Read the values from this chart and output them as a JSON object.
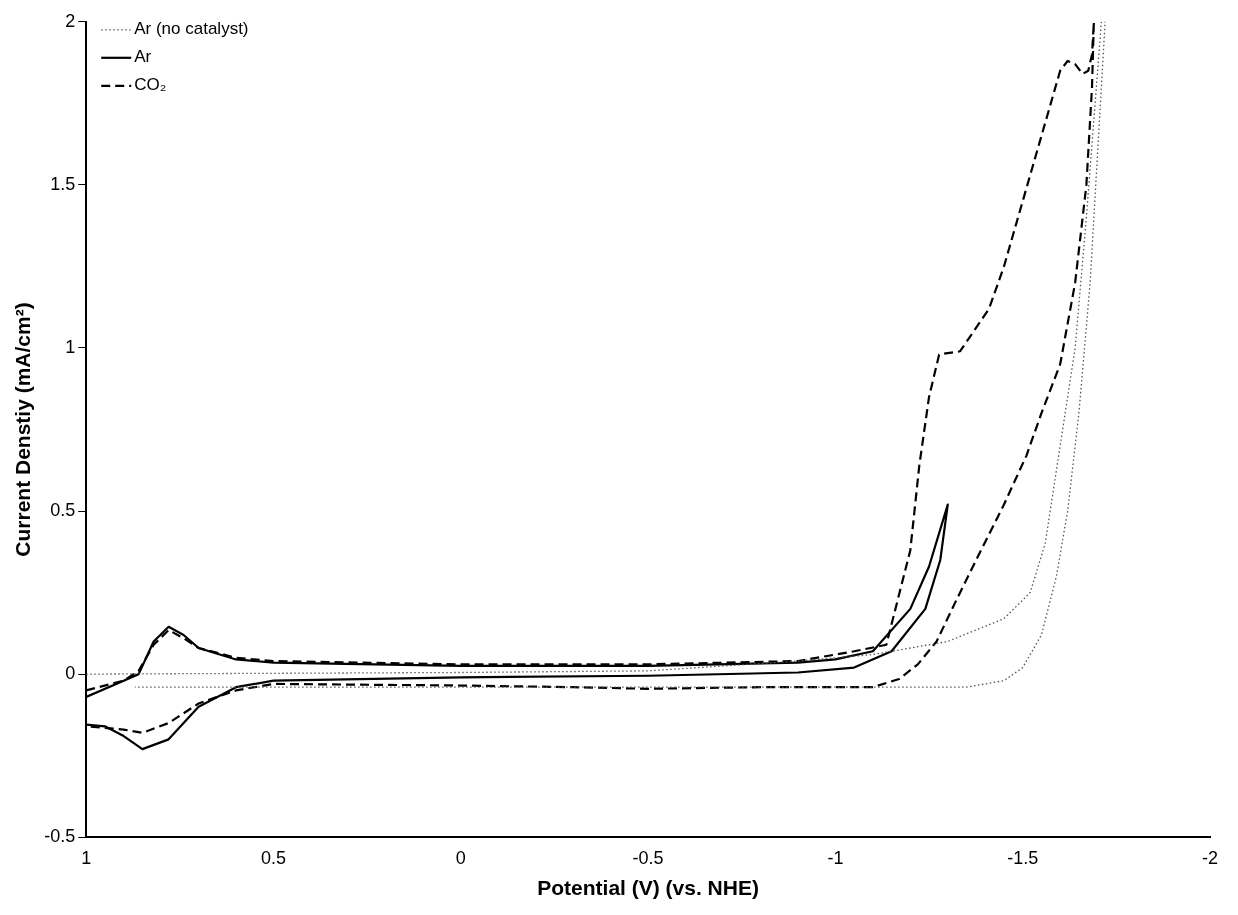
{
  "chart_data": {
    "type": "line",
    "xlabel": "Potential (V) (vs. NHE)",
    "ylabel": "Current Denstiy (mA/cm²)",
    "xlim": [
      1,
      -2
    ],
    "xticks": [
      1,
      0.5,
      0,
      -0.5,
      -1,
      -1.5,
      -2
    ],
    "ylim": [
      -0.5,
      2
    ],
    "yticks": [
      -0.5,
      0,
      0.5,
      1,
      1.5,
      2
    ],
    "grid": false,
    "legend": "top left",
    "marker": "none",
    "series": [
      {
        "name": "Ar (no catalyst)",
        "color": "#555555",
        "line_style": "dotted",
        "x": [
          1,
          0,
          -0.5,
          -0.9,
          -1.1,
          -1.3,
          -1.45,
          -1.52,
          -1.56,
          -1.6,
          -1.64,
          -1.67,
          -1.69,
          -1.71,
          -1.72,
          -1.7,
          -1.68,
          -1.65,
          -1.62,
          -1.59,
          -1.55,
          -1.5,
          -1.45,
          -1.35,
          -1,
          0,
          0.5,
          0.87
        ],
        "values": [
          0,
          0.005,
          0.01,
          0.04,
          0.06,
          0.1,
          0.17,
          0.25,
          0.4,
          0.7,
          1,
          1.4,
          1.7,
          2,
          2,
          1.6,
          1.2,
          0.8,
          0.5,
          0.3,
          0.12,
          0.02,
          -0.02,
          -0.04,
          -0.04,
          -0.04,
          -0.04,
          -0.04
        ]
      },
      {
        "name": "Ar",
        "color": "#000000",
        "line_style": "solid",
        "x": [
          1,
          0.9,
          0.86,
          0.82,
          0.78,
          0.74,
          0.7,
          0.6,
          0.5,
          0,
          -0.5,
          -0.9,
          -1,
          -1.1,
          -1.2,
          -1.25,
          -1.3,
          -1.28,
          -1.24,
          -1.15,
          -1.05,
          -0.9,
          -0.5,
          0,
          0.5,
          0.6,
          0.7,
          0.78,
          0.85,
          0.9,
          0.95,
          1
        ],
        "values": [
          -0.07,
          -0.02,
          0,
          0.1,
          0.145,
          0.12,
          0.08,
          0.045,
          0.035,
          0.025,
          0.025,
          0.035,
          0.045,
          0.07,
          0.2,
          0.33,
          0.52,
          0.35,
          0.2,
          0.07,
          0.02,
          0.005,
          -0.005,
          -0.01,
          -0.02,
          -0.04,
          -0.1,
          -0.2,
          -0.23,
          -0.19,
          -0.16,
          -0.155
        ]
      },
      {
        "name": "CO₂",
        "color": "#000000",
        "line_style": "dashed",
        "x": [
          1,
          0.9,
          0.86,
          0.82,
          0.78,
          0.74,
          0.7,
          0.6,
          0.5,
          0,
          -0.5,
          -0.9,
          -1,
          -1.05,
          -1.136,
          -1.2,
          -1.224,
          -1.25,
          -1.277,
          -1.333,
          -1.41,
          -1.45,
          -1.5,
          -1.55,
          -1.6,
          -1.62,
          -1.64,
          -1.66,
          -1.675,
          -1.685,
          -1.69,
          -1.685,
          -1.67,
          -1.64,
          -1.6,
          -1.55,
          -1.51,
          -1.45,
          -1.38,
          -1.32,
          -1.27,
          -1.22,
          -1.17,
          -1.1,
          -0.8,
          -0.5,
          -0.3,
          0,
          0.5,
          0.6,
          0.7,
          0.78,
          0.85,
          0.9,
          1
        ],
        "values": [
          -0.05,
          -0.02,
          0.01,
          0.09,
          0.135,
          0.11,
          0.08,
          0.05,
          0.04,
          0.03,
          0.03,
          0.04,
          0.06,
          0.07,
          0.09,
          0.38,
          0.64,
          0.85,
          0.98,
          0.99,
          1.12,
          1.25,
          1.45,
          1.65,
          1.85,
          1.88,
          1.87,
          1.84,
          1.85,
          1.9,
          2,
          1.8,
          1.5,
          1.2,
          0.95,
          0.8,
          0.67,
          0.52,
          0.36,
          0.22,
          0.1,
          0.03,
          -0.015,
          -0.04,
          -0.04,
          -0.045,
          -0.04,
          -0.035,
          -0.03,
          -0.05,
          -0.09,
          -0.15,
          -0.18,
          -0.17,
          -0.16
        ]
      }
    ]
  }
}
